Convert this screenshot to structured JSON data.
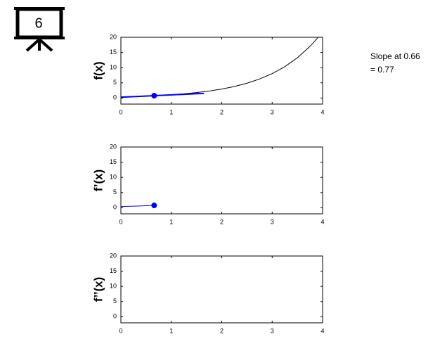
{
  "icon_label": "6",
  "chart_data": [
    {
      "type": "line",
      "ylabel": "f(x)",
      "xlim": [
        0,
        4
      ],
      "ylim": [
        -2,
        20
      ],
      "xticks": [
        0,
        1,
        2,
        3,
        4
      ],
      "yticks": [
        0,
        5,
        10,
        15,
        20
      ],
      "annotation": [
        "Slope at 0.66",
        "= 0.77"
      ],
      "series": [
        {
          "color": "#000000",
          "style": "line",
          "x": [
            0,
            0.25,
            0.5,
            0.75,
            1,
            1.25,
            1.5,
            1.75,
            2,
            2.25,
            2.5,
            2.75,
            3,
            3.25,
            3.5,
            3.75,
            3.91
          ],
          "values": [
            0.4,
            0.51,
            0.66,
            0.85,
            1.09,
            1.4,
            1.79,
            2.3,
            2.96,
            3.8,
            4.87,
            6.26,
            8.03,
            10.31,
            13.25,
            17.01,
            19.96
          ]
        },
        {
          "color": "#0000ff",
          "style": "thick-line",
          "x": [
            0,
            1.65
          ],
          "values": [
            0.26,
            1.53
          ]
        },
        {
          "color": "#0000ff",
          "style": "marker",
          "x": [
            0.66
          ],
          "values": [
            0.77
          ]
        }
      ]
    },
    {
      "type": "line",
      "ylabel": "f’(x)",
      "xlim": [
        0,
        4
      ],
      "ylim": [
        -2,
        20
      ],
      "xticks": [
        0,
        1,
        2,
        3,
        4
      ],
      "yticks": [
        0,
        5,
        10,
        15,
        20
      ],
      "series": [
        {
          "color": "#0000ff",
          "style": "line",
          "x": [
            0,
            0.33,
            0.66
          ],
          "values": [
            0.4,
            0.56,
            0.77
          ]
        },
        {
          "color": "#0000ff",
          "style": "marker",
          "x": [
            0.66
          ],
          "values": [
            0.77
          ]
        }
      ]
    },
    {
      "type": "line",
      "ylabel": "f’’(x)",
      "xlim": [
        0,
        4
      ],
      "ylim": [
        -2,
        20
      ],
      "xticks": [
        0,
        1,
        2,
        3,
        4
      ],
      "yticks": [
        0,
        5,
        10,
        15,
        20
      ],
      "series": []
    }
  ]
}
